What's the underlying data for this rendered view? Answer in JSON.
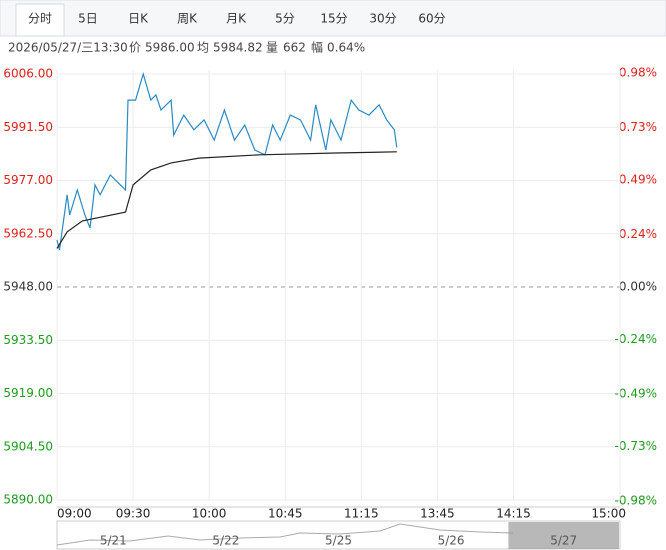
{
  "tabs": [
    "分时",
    "5日",
    "日K",
    "周K",
    "月K",
    "5分",
    "15分",
    "30分",
    "60分"
  ],
  "selected_tab": 0,
  "info": {
    "datetime": "2026/05/27/三13:30",
    "price_label": "价",
    "price": "5986.00",
    "avg_label": "均",
    "avg": "5984.82",
    "volume_label": "量",
    "volume": "662",
    "range_label": "幅",
    "range": "0.64%"
  },
  "chart_data": {
    "type": "line",
    "xlim": [
      0,
      222
    ],
    "xticks": [
      {
        "value": 0,
        "label": "09:00"
      },
      {
        "value": 30,
        "label": "09:30"
      },
      {
        "value": 60,
        "label": "10:00"
      },
      {
        "value": 90,
        "label": "10:45"
      },
      {
        "value": 120,
        "label": "11:15"
      },
      {
        "value": 150,
        "label": "13:45"
      },
      {
        "value": 180,
        "label": "14:15"
      },
      {
        "value": 222,
        "label": "15:00"
      }
    ],
    "ylim": [
      5890,
      6006
    ],
    "yticks": [
      {
        "value": 6006,
        "label": "6006.00"
      },
      {
        "value": 5991.5,
        "label": "5991.50"
      },
      {
        "value": 5977,
        "label": "5977.00"
      },
      {
        "value": 5962.5,
        "label": "5962.50"
      },
      {
        "value": 5948,
        "label": "5948.00"
      },
      {
        "value": 5933.5,
        "label": "5933.50"
      },
      {
        "value": 5919,
        "label": "5919.00"
      },
      {
        "value": 5904.5,
        "label": "5904.50"
      },
      {
        "value": 5890,
        "label": "5890.00"
      }
    ],
    "y2lim": [
      -0.975,
      0.975
    ],
    "y2ticks": [
      {
        "value": 0.98,
        "label": "0.98%"
      },
      {
        "value": 0.73,
        "label": "0.73%"
      },
      {
        "value": 0.49,
        "label": "0.49%"
      },
      {
        "value": 0.24,
        "label": "0.24%"
      },
      {
        "value": 0,
        "label": "0.00%"
      },
      {
        "value": -0.24,
        "label": "-0.24%"
      },
      {
        "value": -0.49,
        "label": "-0.49%"
      },
      {
        "value": -0.73,
        "label": "-0.73%"
      },
      {
        "value": -0.98,
        "label": "-0.98%"
      }
    ],
    "reference": 5948,
    "up_color": "#e0201c",
    "down_color": "#1f9a1f",
    "flat_color": "#333333",
    "grid": true,
    "series": [
      {
        "color": "#2a8ac4",
        "x": [
          0,
          1,
          4,
          5,
          8,
          11,
          13,
          15,
          17,
          21,
          25,
          27,
          28,
          31,
          34,
          37,
          39,
          41,
          45,
          46,
          50,
          54,
          58,
          62,
          66,
          70,
          74,
          78,
          82,
          85,
          88,
          92,
          96,
          100,
          102,
          106,
          108,
          112,
          116,
          119,
          123,
          127,
          130,
          133,
          134
        ],
        "values": [
          5960.8,
          5958.1,
          5973.1,
          5967.6,
          5974.4,
          5967.6,
          5964.1,
          5975.8,
          5973.1,
          5978.5,
          5975.8,
          5974.4,
          5998.9,
          5998.9,
          6006.0,
          5998.9,
          6000.3,
          5996.2,
          5998.9,
          5989.4,
          5994.8,
          5990.8,
          5993.5,
          5988.0,
          5996.2,
          5988.0,
          5992.1,
          5985.3,
          5984.0,
          5992.1,
          5988.0,
          5994.8,
          5993.5,
          5988.0,
          5997.6,
          5985.3,
          5993.5,
          5988.0,
          5998.9,
          5996.2,
          5994.8,
          5997.6,
          5993.5,
          5990.8,
          5986.0
        ]
      },
      {
        "color": "#222222",
        "x": [
          0,
          4,
          10,
          27,
          30,
          37,
          45,
          56,
          80,
          110,
          134
        ],
        "values": [
          5958.5,
          5963.0,
          5966.0,
          5968.4,
          5975.8,
          5979.9,
          5981.8,
          5983.1,
          5984.0,
          5984.5,
          5984.82
        ]
      }
    ]
  },
  "navigator": {
    "dates": [
      "5/21",
      "5/22",
      "5/25",
      "5/26",
      "5/27"
    ],
    "selected": 4
  }
}
